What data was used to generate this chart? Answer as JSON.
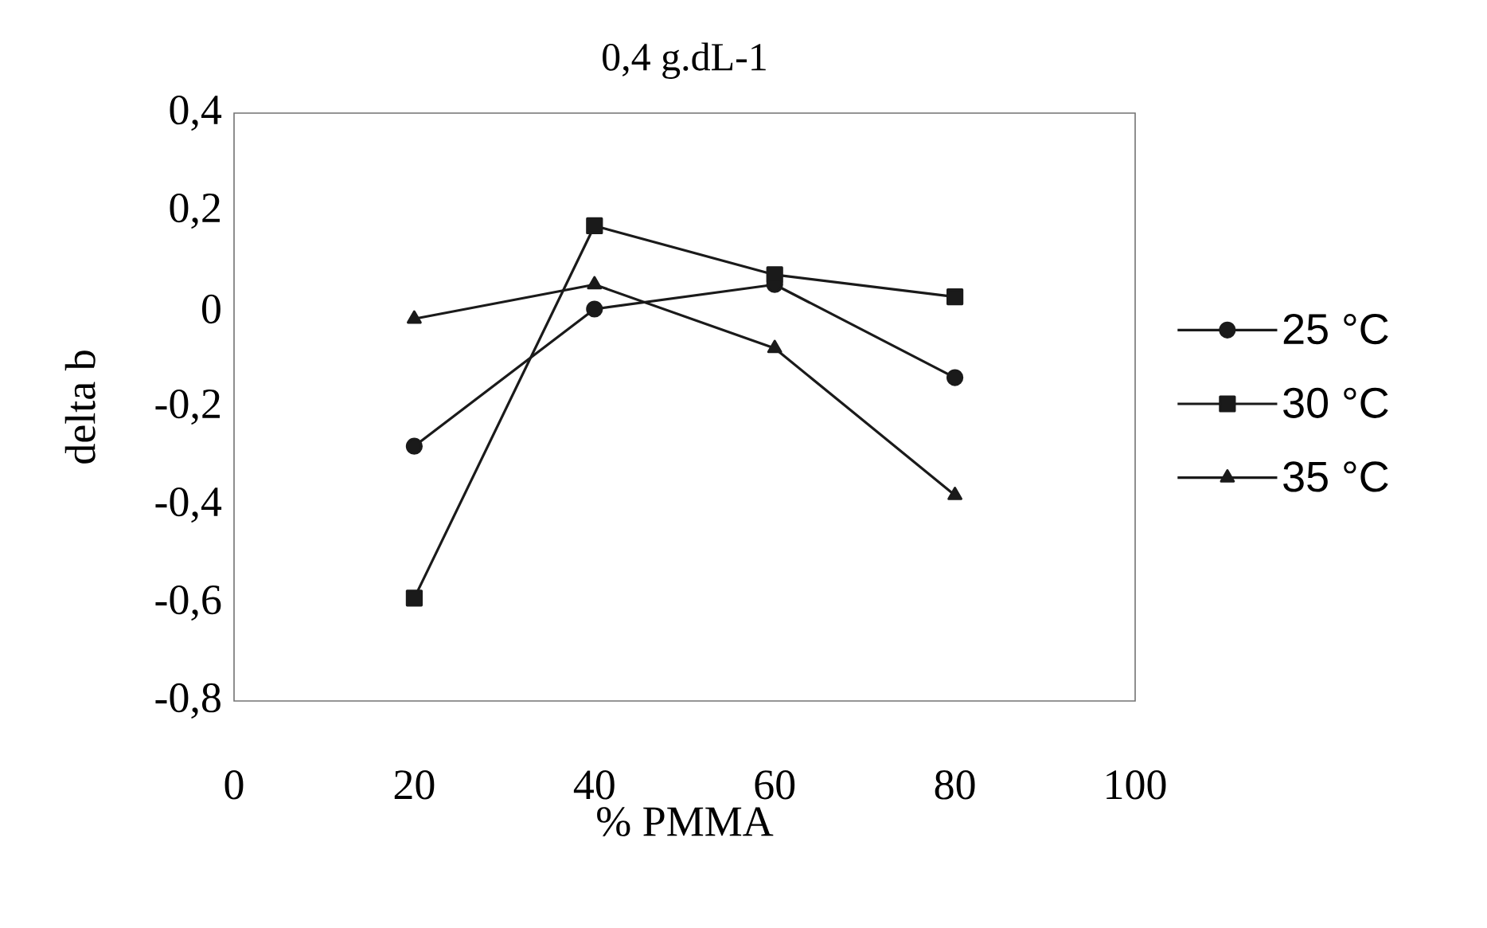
{
  "chart_data": {
    "type": "line",
    "title": "0,4 g.dL-1",
    "xlabel": "% PMMA",
    "ylabel": "delta b",
    "x": [
      20,
      40,
      60,
      80
    ],
    "series": [
      {
        "name": "25 °C",
        "color": "#1a1a1a",
        "marker": "circle",
        "values": [
          -0.28,
          0.0,
          0.05,
          -0.14
        ]
      },
      {
        "name": "30 °C",
        "color": "#1a1a1a",
        "marker": "square",
        "values": [
          -0.59,
          0.17,
          0.07,
          0.025
        ]
      },
      {
        "name": "35 °C",
        "color": "#1a1a1a",
        "marker": "triangle",
        "values": [
          -0.02,
          0.05,
          -0.08,
          -0.38
        ]
      }
    ],
    "xlim": [
      0,
      100
    ],
    "xticks": [
      0,
      20,
      40,
      60,
      80,
      100
    ],
    "ylim": [
      -0.8,
      0.4
    ],
    "yticks": [
      {
        "value": -0.8,
        "label": "-0,8"
      },
      {
        "value": -0.6,
        "label": "-0,6"
      },
      {
        "value": -0.4,
        "label": "-0,4"
      },
      {
        "value": -0.2,
        "label": "-0,2"
      },
      {
        "value": 0,
        "label": "0"
      },
      {
        "value": 0.2,
        "label": "0,2"
      },
      {
        "value": 0.4,
        "label": "0,4"
      }
    ],
    "grid": false,
    "legend": "right",
    "line_style": "solid"
  }
}
